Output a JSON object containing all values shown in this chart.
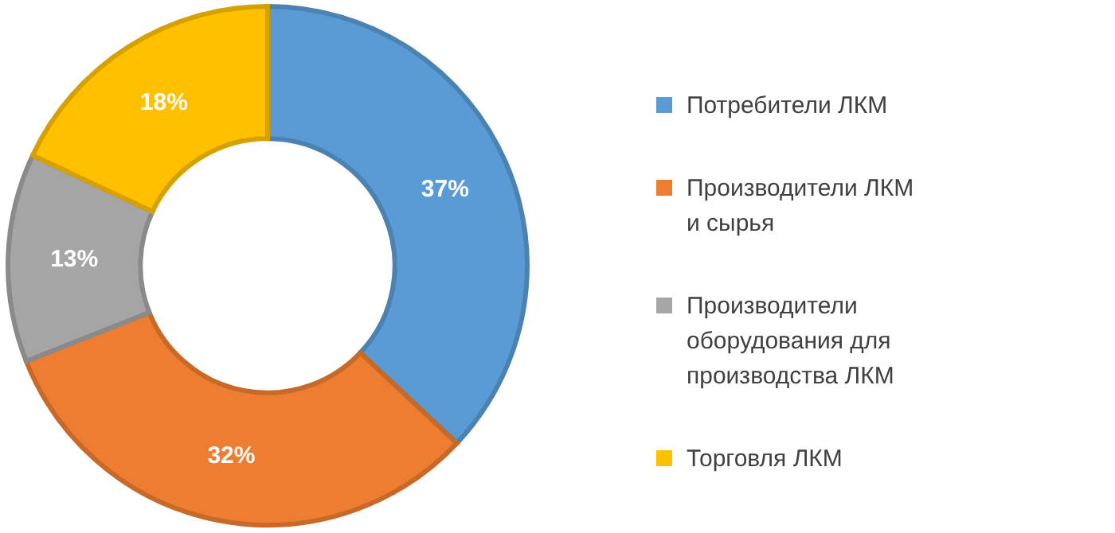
{
  "chart_data": {
    "type": "donut",
    "categories": [
      "Потребители ЛКМ",
      "Производители ЛКМ и сырья",
      "Производители оборудования для производства ЛКМ",
      "Торговля ЛКМ"
    ],
    "values": [
      37,
      32,
      13,
      18
    ],
    "colors": [
      "#5b9bd5",
      "#ed7d31",
      "#a5a5a5",
      "#ffc000"
    ],
    "value_labels": [
      "37%",
      "32%",
      "13%",
      "18%"
    ],
    "legend": "right"
  }
}
